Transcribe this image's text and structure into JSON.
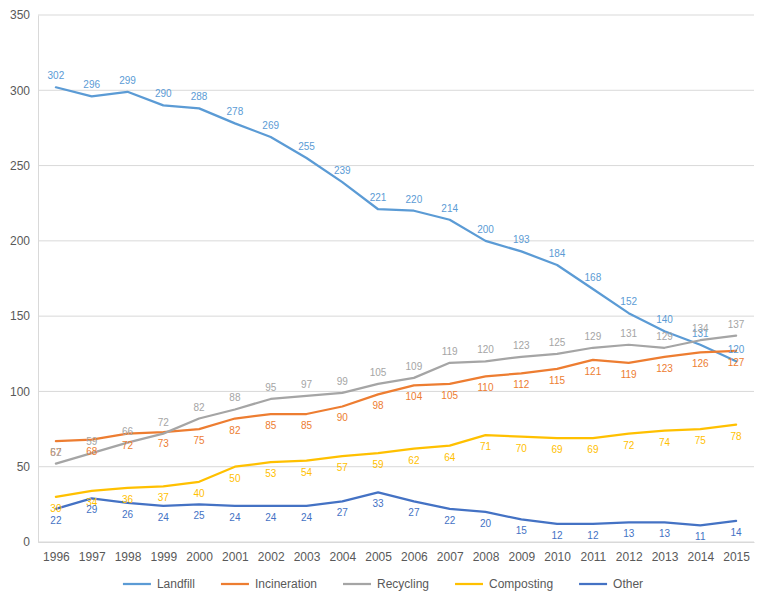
{
  "chart_data": {
    "type": "line",
    "categories": [
      "1996",
      "1997",
      "1998",
      "1999",
      "2000",
      "2001",
      "2002",
      "2003",
      "2004",
      "2005",
      "2006",
      "2007",
      "2008",
      "2009",
      "2010",
      "2011",
      "2012",
      "2013",
      "2014",
      "2015"
    ],
    "series": [
      {
        "name": "Landfill",
        "color": "#5b9bd5",
        "values": [
          302,
          296,
          299,
          290,
          288,
          278,
          269,
          255,
          239,
          221,
          220,
          214,
          200,
          193,
          184,
          168,
          152,
          140,
          131,
          120
        ]
      },
      {
        "name": "Incineration",
        "color": "#ed7d31",
        "values": [
          67,
          68,
          72,
          73,
          75,
          82,
          85,
          85,
          90,
          98,
          104,
          105,
          110,
          112,
          115,
          121,
          119,
          123,
          126,
          127
        ]
      },
      {
        "name": "Recycling",
        "color": "#a5a5a5",
        "values": [
          52,
          59,
          66,
          72,
          82,
          88,
          95,
          97,
          99,
          105,
          109,
          119,
          120,
          123,
          125,
          129,
          131,
          129,
          134,
          137
        ]
      },
      {
        "name": "Composting",
        "color": "#ffc000",
        "values": [
          30,
          34,
          36,
          37,
          40,
          50,
          53,
          54,
          57,
          59,
          62,
          64,
          71,
          70,
          69,
          69,
          72,
          74,
          75,
          78
        ]
      },
      {
        "name": "Other",
        "color": "#4472c4",
        "values": [
          22,
          29,
          26,
          24,
          25,
          24,
          24,
          24,
          27,
          33,
          27,
          22,
          20,
          15,
          12,
          12,
          13,
          13,
          11,
          14
        ]
      }
    ],
    "ylim": [
      0,
      350
    ],
    "yticks": [
      0,
      50,
      100,
      150,
      200,
      250,
      300,
      350
    ],
    "grid": true,
    "legend": "bottom",
    "data_labels": true
  }
}
